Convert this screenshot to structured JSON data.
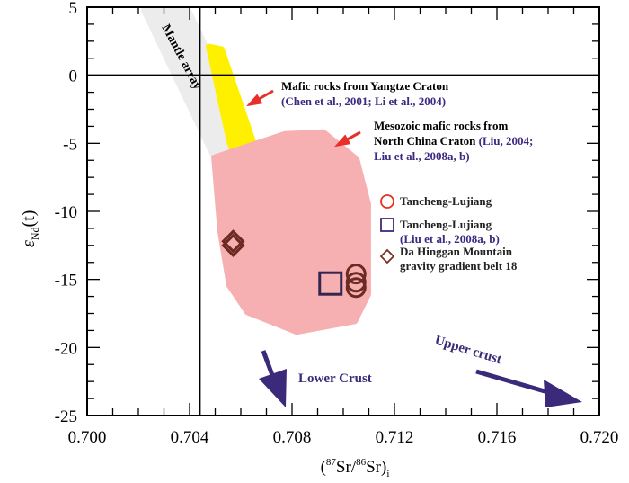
{
  "chart_data": {
    "type": "scatter",
    "xlabel_parts": [
      "(",
      "87",
      "Sr/",
      "86",
      "Sr)",
      "i"
    ],
    "ylabel_parts": [
      "ε",
      "Nd",
      "(t)"
    ],
    "xlim": [
      0.7,
      0.72
    ],
    "ylim": [
      -25,
      5
    ],
    "xticks": [
      "0.700",
      "0.704",
      "0.708",
      "0.712",
      "0.716",
      "0.720"
    ],
    "xtick_values": [
      0.7,
      0.704,
      0.708,
      0.712,
      0.716,
      0.72
    ],
    "yticks": [
      "5",
      "0",
      "-5",
      "-10",
      "-15",
      "-20",
      "-25"
    ],
    "ytick_values": [
      5,
      0,
      -5,
      -10,
      -15,
      -20,
      -25
    ],
    "reference_lines": {
      "x": 0.7044,
      "y": 0
    },
    "regions": [
      {
        "name": "Mantle array",
        "color": "#ececec",
        "points": [
          [
            0.70221,
            4.77
          ],
          [
            0.70396,
            4.77
          ],
          [
            0.70667,
            -6.03
          ],
          [
            0.70495,
            -6.03
          ]
        ]
      },
      {
        "name": "Mafic rocks from Yangtze Craton",
        "color": "#fff000",
        "points": [
          [
            0.70474,
            2.12
          ],
          [
            0.70526,
            1.92
          ],
          [
            0.70702,
            -7.81
          ],
          [
            0.70677,
            -8.48
          ],
          [
            0.70596,
            -7.15
          ],
          [
            0.70554,
            -4.83
          ]
        ]
      },
      {
        "name": "Mesozoic mafic rocks from North China Craton",
        "color": "#f7b0b2",
        "points": [
          [
            0.70495,
            -6.03
          ],
          [
            0.70772,
            -4.3
          ],
          [
            0.70923,
            -4.17
          ],
          [
            0.71053,
            -6.16
          ],
          [
            0.71098,
            -9.47
          ],
          [
            0.71098,
            -16.09
          ],
          [
            0.71046,
            -18.08
          ],
          [
            0.70818,
            -18.87
          ],
          [
            0.70625,
            -17.42
          ],
          [
            0.70554,
            -15.43
          ],
          [
            0.70519,
            -11.46
          ]
        ]
      }
    ],
    "series": [
      {
        "name": "Tancheng-Lujiang",
        "marker": "circle",
        "color": "#6b2a22",
        "points": [
          [
            0.7105,
            -14.6
          ],
          [
            0.7105,
            -15.2
          ],
          [
            0.7105,
            -15.6
          ]
        ]
      },
      {
        "name": "Tancheng-Lujiang (Liu et al., 2008a, b)",
        "marker": "square",
        "color": "#33264f",
        "points": [
          [
            0.7095,
            -15.3
          ]
        ]
      },
      {
        "name": "Da Hinggan Mountain gravity gradient belt 18",
        "marker": "diamond",
        "color": "#6b2a22",
        "points": [
          [
            0.7057,
            -12.2
          ],
          [
            0.7057,
            -12.5
          ]
        ]
      }
    ],
    "legend": {
      "position": "right",
      "items": [
        {
          "lines": [
            "Tancheng-Lujiang"
          ],
          "marker": "circle",
          "color": "#e8301e"
        },
        {
          "lines": [
            "Tancheng-Lujiang",
            "(Liu et al., 2008a, b)"
          ],
          "marker": "square",
          "color": "#3d2a80"
        },
        {
          "lines": [
            "Da Hinggan Mountain",
            "gravity gradient belt 18"
          ],
          "marker": "diamond",
          "color": "#7a2e22"
        }
      ]
    },
    "annotations": {
      "mantle_array": "Mantle array",
      "yangtze_title": "Mafic rocks from Yangtze Craton",
      "yangtze_ref": "(Chen et al., 2001; Li et al., 2004)",
      "ncc_line1": "Mesozoic mafic rocks from",
      "ncc_line2a": "North China Craton ",
      "ncc_line2b": "(Liu, 2004;",
      "ncc_line3": "Liu et al., 2008a, b)",
      "lower_crust": "Lower Crust",
      "upper_crust": "Upper crust"
    },
    "colors": {
      "citation": "#3d2a80",
      "arrow": "#3b2a7a",
      "pointer": "#e8302a"
    }
  }
}
